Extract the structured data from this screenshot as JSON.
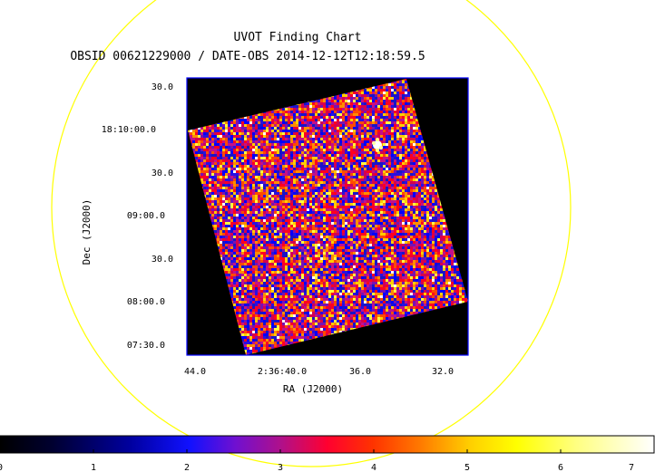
{
  "chart_data": {
    "type": "heatmap",
    "title": "UVOT Finding Chart",
    "subtitle": "OBSID 00621229000 / DATE-OBS 2014-12-12T12:18:59.5",
    "xlabel": "RA (J2000)",
    "ylabel": "Dec (J2000)",
    "x_ticks": [
      "44.0",
      "2:36:40.0",
      "36.0",
      "32.0"
    ],
    "y_ticks": [
      "30.0",
      "18:10:00.0",
      "30.0",
      "09:00.0",
      "30.0",
      "08:00.0",
      "07:30.0"
    ],
    "colorbar": {
      "ticks": [
        "0",
        "1",
        "2",
        "3",
        "4",
        "5",
        "6",
        "7"
      ],
      "range": [
        0,
        7
      ]
    },
    "colors": {
      "circle": "#ffff00",
      "frame": "#0000ff",
      "background": "#000000"
    }
  }
}
